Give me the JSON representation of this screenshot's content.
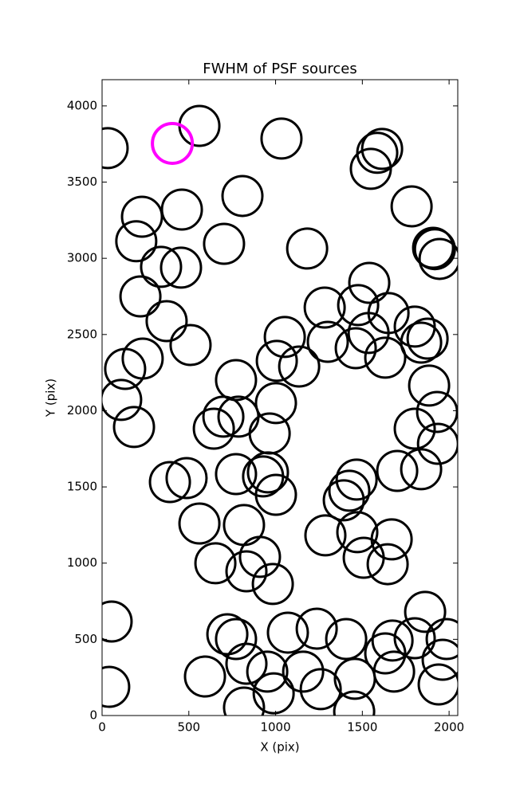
{
  "chart_data": {
    "type": "scatter",
    "title": "FWHM of PSF sources",
    "x_label": "X (pix)",
    "y_label": "Y (pix)",
    "xlim": [
      0,
      2050
    ],
    "ylim": [
      0,
      4172
    ],
    "xticks": [
      0,
      500,
      1000,
      1500,
      2000
    ],
    "yticks": [
      0,
      500,
      1000,
      1500,
      2000,
      2500,
      3000,
      3500,
      4000
    ],
    "grid": false,
    "series": [
      {
        "color": "#000000",
        "x": [
          32,
          561,
          1034,
          1549,
          1586,
          1614,
          809,
          460,
          230,
          1784,
          197,
          703,
          1182,
          1908,
          1918,
          1945,
          340,
          455,
          1540,
          221,
          1283,
          1476,
          1651,
          372,
          1802,
          1053,
          1536,
          1301,
          1876,
          1839,
          510,
          1462,
          234,
          1007,
          1632,
          1136,
          133,
          772,
          1885,
          110,
          1002,
          1931,
          699,
          786,
          644,
          184,
          966,
          1802,
          1936,
          391,
          487,
          772,
          956,
          928,
          1701,
          1839,
          1467,
          1425,
          1393,
          1002,
          561,
          818,
          1287,
          1471,
          1669,
          653,
          910,
          832,
          1508,
          1646,
          984,
          55,
          1862,
          722,
          772,
          1071,
          1237,
          1407,
          1674,
          1802,
          1986,
          1963,
          832,
          1632,
          593,
          952,
          1159,
          1457,
          1683,
          41,
          989,
          1260,
          1940,
          818,
          1453
        ],
        "y": [
          3723,
          3869,
          3786,
          3587,
          3692,
          3718,
          3409,
          3320,
          3273,
          3341,
          3112,
          3095,
          3064,
          3069,
          3060,
          2996,
          2944,
          2939,
          2839,
          2750,
          2677,
          2693,
          2641,
          2588,
          2552,
          2484,
          2510,
          2452,
          2473,
          2447,
          2431,
          2410,
          2342,
          2327,
          2348,
          2290,
          2274,
          2201,
          2165,
          2071,
          2050,
          1992,
          1961,
          1961,
          1882,
          1893,
          1851,
          1882,
          1783,
          1532,
          1558,
          1584,
          1595,
          1569,
          1605,
          1616,
          1548,
          1475,
          1412,
          1448,
          1260,
          1250,
          1182,
          1203,
          1156,
          999,
          1041,
          946,
          1035,
          993,
          863,
          617,
          680,
          533,
          502,
          544,
          570,
          502,
          492,
          507,
          502,
          366,
          340,
          408,
          256,
          288,
          288,
          241,
          288,
          188,
          146,
          173,
          204,
          52,
          26
        ]
      },
      {
        "color": "#ff00ff",
        "x": [
          405
        ],
        "y": [
          3754
        ]
      }
    ]
  }
}
